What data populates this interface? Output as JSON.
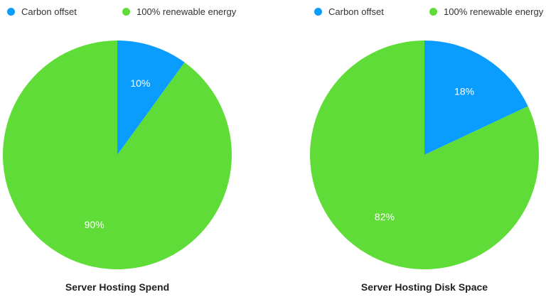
{
  "chart_data": [
    {
      "type": "pie",
      "title": "Server Hosting Spend",
      "start_angle": "12 o'clock, clockwise",
      "slices": [
        {
          "name": "Carbon offset",
          "value": 10,
          "label": "10%",
          "color": "#0a9cff"
        },
        {
          "name": "100% renewable energy",
          "value": 90,
          "label": "90%",
          "color": "#5fdc37"
        }
      ],
      "legend_position": "top-left"
    },
    {
      "type": "pie",
      "title": "Server Hosting Disk Space",
      "start_angle": "12 o'clock, clockwise",
      "slices": [
        {
          "name": "Carbon offset",
          "value": 18,
          "label": "18%",
          "color": "#0a9cff"
        },
        {
          "name": "100% renewable energy",
          "value": 82,
          "label": "82%",
          "color": "#5fdc37"
        }
      ],
      "legend_position": "top-left"
    }
  ]
}
